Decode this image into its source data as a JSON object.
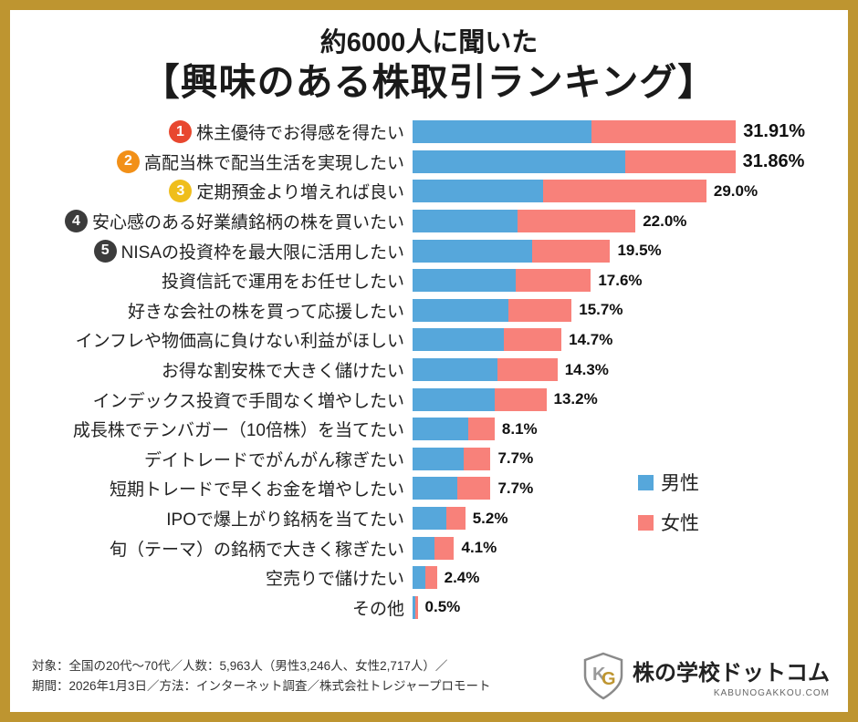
{
  "title": {
    "line1": "約6000人に聞いた",
    "line2": "【興味のある株取引ランキング】"
  },
  "legend": {
    "male": "男性",
    "female": "女性"
  },
  "colors": {
    "male": "#56A7DB",
    "female": "#F8817A",
    "frame": "#BE9530",
    "rank_badges": [
      "#E8472F",
      "#F29018",
      "#EFBE1C",
      "#3C3C3C",
      "#3C3C3C"
    ]
  },
  "chart_data": {
    "type": "bar",
    "orientation": "horizontal",
    "stacked": true,
    "legend_position": "right",
    "categories": [
      "株主優待でお得感を得たい",
      "高配当株で配当生活を実現したい",
      "定期預金より増えれば良い",
      "安心感のある好業績銘柄の株を買いたい",
      "NISAの投資枠を最大限に活用したい",
      "投資信託で運用をお任せしたい",
      "好きな会社の株を買って応援したい",
      "インフレや物価高に負けない利益がほしい",
      "お得な割安株で大きく儲けたい",
      "インデックス投資で手間なく増やしたい",
      "成長株でテンバガー（10倍株）を当てたい",
      "デイトレードでがんがん稼ぎたい",
      "短期トレードで早くお金を増やしたい",
      "IPOで爆上がり銘柄を当てたい",
      "旬（テーマ）の銘柄で大きく稼ぎたい",
      "空売りで儲けたい",
      "その他"
    ],
    "totals": [
      31.91,
      31.86,
      29.0,
      22.0,
      19.5,
      17.6,
      15.7,
      14.7,
      14.3,
      13.2,
      8.1,
      7.7,
      7.7,
      5.2,
      4.1,
      2.4,
      0.5
    ],
    "total_labels": [
      "31.91%",
      "31.86%",
      "29.0%",
      "22.0%",
      "19.5%",
      "17.6%",
      "15.7%",
      "14.7%",
      "14.3%",
      "13.2%",
      "8.1%",
      "7.7%",
      "7.7%",
      "5.2%",
      "4.1%",
      "2.4%",
      "0.5%"
    ],
    "series": [
      {
        "name": "男性",
        "values": [
          17.7,
          21.0,
          12.9,
          10.4,
          11.8,
          10.2,
          9.5,
          9.0,
          8.4,
          8.1,
          5.5,
          5.0,
          4.4,
          3.3,
          2.2,
          1.3,
          0.3
        ]
      },
      {
        "name": "女性",
        "values": [
          14.21,
          10.86,
          16.1,
          11.6,
          7.7,
          7.4,
          6.2,
          5.7,
          5.9,
          5.1,
          2.6,
          2.7,
          3.3,
          1.9,
          1.9,
          1.1,
          0.2
        ]
      }
    ],
    "ranked_count": 5,
    "xlim": [
      0,
      33
    ]
  },
  "footer": {
    "line1": "対象：全国の20代〜70代／人数：5,963人（男性3,246人、女性2,717人）／",
    "line2": "期間：2026年1月3日／方法：インターネット調査／株式会社トレジャープロモート"
  },
  "logo": {
    "name": "株の学校ドットコム",
    "domain": "KABUNOGAKKOU.COM"
  }
}
